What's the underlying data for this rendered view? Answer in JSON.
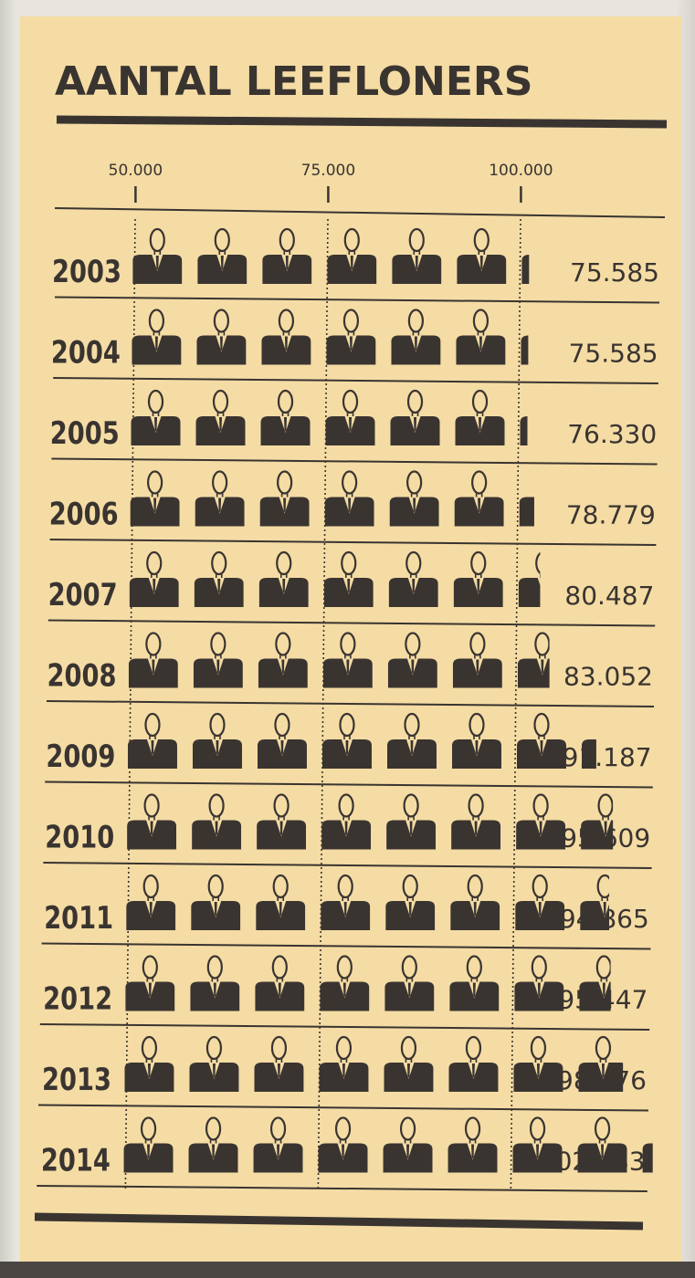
{
  "chart_data": {
    "type": "bar",
    "title": "AANTAL LEEFLONERS",
    "xticks": [
      "50.000",
      "75.000",
      "100.000"
    ],
    "xlim": [
      50000,
      100000
    ],
    "categories": [
      "2003",
      "2004",
      "2005",
      "2006",
      "2007",
      "2008",
      "2009",
      "2010",
      "2011",
      "2012",
      "2013",
      "2014"
    ],
    "value_labels": [
      "75.585",
      "75.585",
      "76.330",
      "78.779",
      "80.487",
      "83.052",
      "91.187",
      "95.609",
      "94.865",
      "95.447",
      "98.776",
      "102.583"
    ],
    "values": [
      75585,
      75585,
      76330,
      78779,
      80487,
      83052,
      91187,
      95609,
      94865,
      95447,
      98776,
      102583
    ],
    "icon": "person-in-suit-icon"
  },
  "colors": {
    "background": "#f4dca4",
    "ink": "#3a3431",
    "icon": "#3a3431"
  }
}
